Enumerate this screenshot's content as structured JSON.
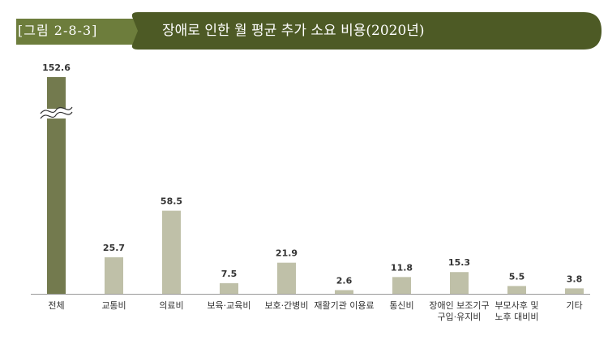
{
  "header": {
    "figure_label": "[그림 2-8-3]",
    "title": "장애로 인한 월 평균 추가 소요 비용(2020년)"
  },
  "colors": {
    "banner": "#4d5a25",
    "banner_left": "#6d7d3c",
    "bar_highlight": "#737a4e",
    "bar": "#bfc0a8",
    "baseline": "#999999"
  },
  "chart_data": {
    "type": "bar",
    "title": "장애로 인한 월 평균 추가 소요 비용(2020년)",
    "xlabel": "",
    "ylabel": "",
    "axis_break": true,
    "grid": false,
    "categories": [
      "전체",
      "교통비",
      "의료비",
      "보육·교육비",
      "보호·간병비",
      "재활기관 이용료",
      "통신비",
      "장애인 보조기구 구입·유지비",
      "부모사후 및 노후 대비비",
      "기타"
    ],
    "category_lines": [
      [
        "전체"
      ],
      [
        "교통비"
      ],
      [
        "의료비"
      ],
      [
        "보육·교육비"
      ],
      [
        "보호·간병비"
      ],
      [
        "재활기관 이용료"
      ],
      [
        "통신비"
      ],
      [
        "장애인 보조기구",
        "구입·유지비"
      ],
      [
        "부모사후 및",
        "노후 대비비"
      ],
      [
        "기타"
      ]
    ],
    "values": [
      152.6,
      25.7,
      58.5,
      7.5,
      21.9,
      2.6,
      11.8,
      15.3,
      5.5,
      3.8
    ],
    "value_labels": [
      "152.6",
      "25.7",
      "58.5",
      "7.5",
      "21.9",
      "2.6",
      "11.8",
      "15.3",
      "5.5",
      "3.8"
    ]
  }
}
